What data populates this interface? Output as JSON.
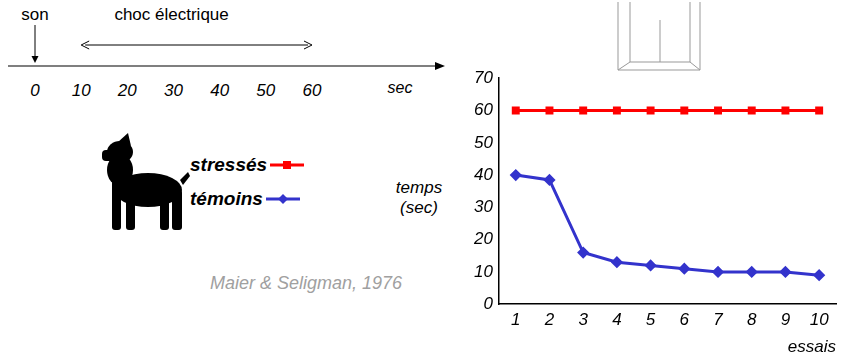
{
  "chart_data": {
    "type": "line",
    "x_label": "essais",
    "y_label": "temps (sec)",
    "x": [
      1,
      2,
      3,
      4,
      5,
      6,
      7,
      8,
      9,
      10
    ],
    "xlim": [
      0.5,
      10.5
    ],
    "xticks": [
      1,
      2,
      3,
      4,
      5,
      6,
      7,
      8,
      9,
      10
    ],
    "ylim": [
      0,
      70
    ],
    "yticks": [
      0,
      10,
      20,
      30,
      40,
      50,
      60,
      70
    ],
    "grid": false,
    "series": [
      {
        "name": "stressés",
        "color": "#ff0000",
        "marker": "square",
        "line_style": "solid",
        "values": [
          60,
          60,
          60,
          60,
          60,
          60,
          60,
          60,
          60,
          60
        ]
      },
      {
        "name": "témoins",
        "color": "#3333cc",
        "marker": "diamond",
        "line_style": "solid",
        "values": [
          40,
          38.5,
          16,
          13,
          12,
          11,
          10,
          10,
          10,
          9
        ]
      }
    ]
  },
  "timeline": {
    "unit": "sec",
    "ticks": [
      0,
      10,
      20,
      30,
      40,
      50,
      60
    ],
    "events": [
      {
        "label": "son",
        "at": 0
      },
      {
        "label": "choc électrique",
        "from": 10,
        "to": 60
      }
    ]
  },
  "citation": "Maier & Seligman, 1976"
}
